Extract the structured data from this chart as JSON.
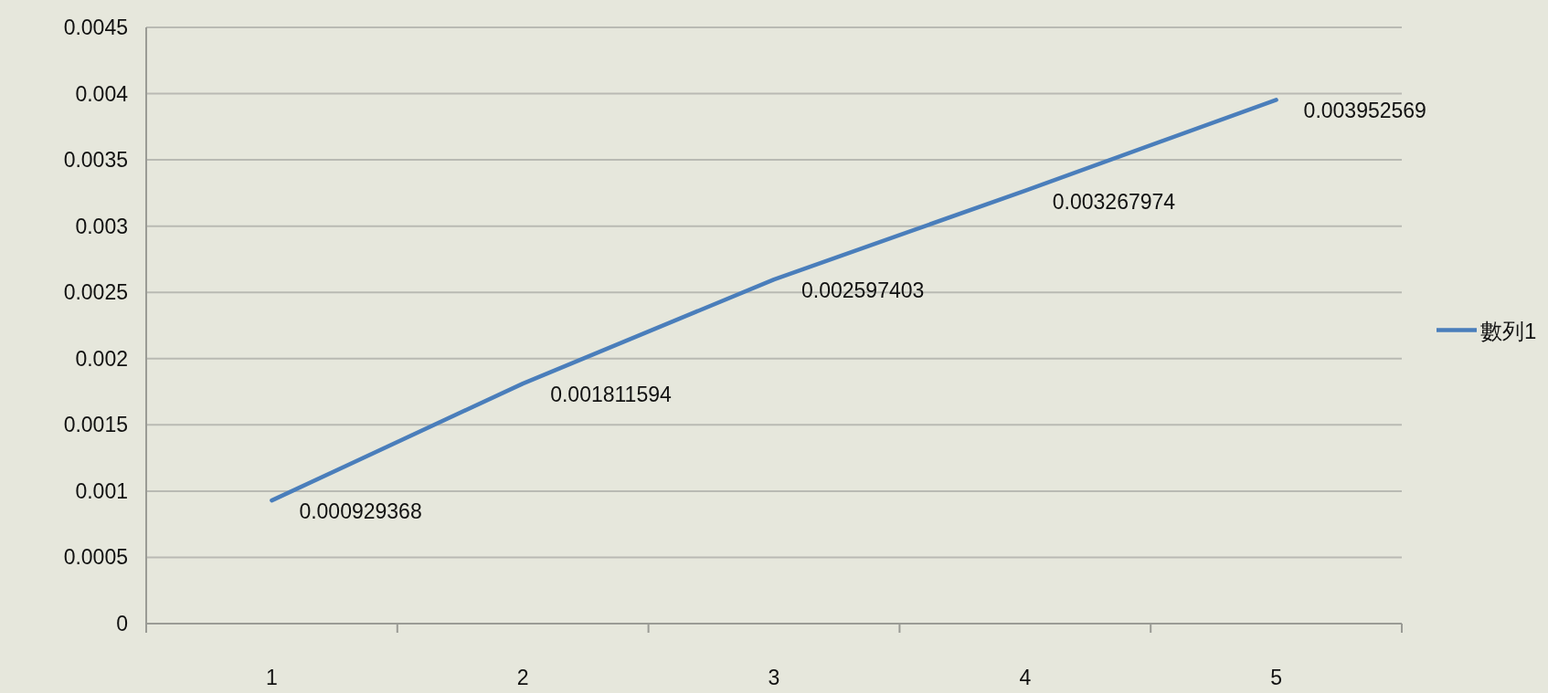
{
  "chart_data": {
    "type": "line",
    "categories": [
      "1",
      "2",
      "3",
      "4",
      "5"
    ],
    "series": [
      {
        "name": "數列1",
        "color": "#4a7ebb",
        "values": [
          0.000929368,
          0.001811594,
          0.002597403,
          0.003267974,
          0.003952569
        ]
      }
    ],
    "ylim": [
      0,
      0.0045
    ],
    "yticks": [
      0,
      0.0005,
      0.001,
      0.0015,
      0.002,
      0.0025,
      0.003,
      0.0035,
      0.004,
      0.0045
    ],
    "grid": "y",
    "legend": "right",
    "data_labels": true
  }
}
